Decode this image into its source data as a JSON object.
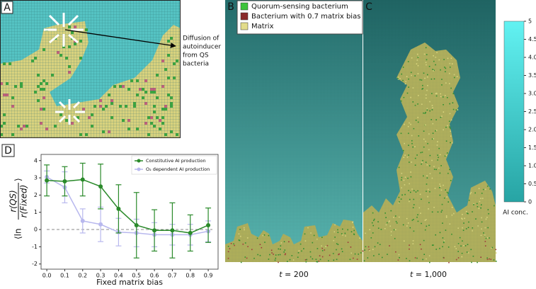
{
  "panels": {
    "a": {
      "label": "A",
      "annotation": [
        "Diffusion of",
        "autoinducer",
        "from QS",
        "bacteria"
      ]
    },
    "b": {
      "label": "B",
      "caption_var": "t",
      "caption_rest": " = 200"
    },
    "c": {
      "label": "C",
      "caption_var": "t",
      "caption_rest": " = 1,000"
    },
    "d": {
      "label": "D"
    }
  },
  "legend": [
    {
      "name": "Quorum-sensing bacterium",
      "color": "#3cc43c"
    },
    {
      "name": "Bacterium with 0.7 matrix bias",
      "color": "#8a2a2a"
    },
    {
      "name": "Matrix",
      "color": "#e2dc8a"
    }
  ],
  "colorbar": {
    "label": "AI conc.",
    "range": [
      0,
      5
    ],
    "colors": [
      "#27a4a4",
      "#62f2f2"
    ],
    "ticks": [
      0,
      0.5,
      {
        "value": 1,
        "label": "1.0"
      },
      1.5,
      {
        "value": 2,
        "label": "2.0"
      },
      2.5,
      {
        "value": 3,
        "label": "3.0"
      },
      3.5,
      {
        "value": 4,
        "label": "4.0"
      },
      4.5,
      5
    ]
  },
  "chart_data": {
    "type": "line",
    "xlabel": "Fixed matrix bias",
    "ylabel": {
      "open": "⟨ln",
      "numerator": "r(QS)",
      "denominator": "r(Fixed)",
      "close": "⟩"
    },
    "x": [
      0,
      0.1,
      0.2,
      0.3,
      0.4,
      0.5,
      0.6,
      0.7,
      0.8,
      0.9
    ],
    "xlim": [
      -0.032,
      0.955
    ],
    "xticks": [
      {
        "value": 0,
        "label": "0.0"
      },
      0.1,
      0.2,
      0.3,
      0.4,
      0.5,
      0.6,
      0.7,
      0.8,
      0.9
    ],
    "ylim": [
      -2.3,
      4.36
    ],
    "yticks": [
      -2,
      -1,
      0,
      1,
      2,
      3,
      4
    ],
    "reference_line": 0,
    "legend_position": "upper right",
    "series": [
      {
        "name": "Constitutive AI production",
        "color": "#2a8a2a",
        "values": [
          2.85,
          2.8,
          2.9,
          2.5,
          1.2,
          0.25,
          -0.05,
          -0.05,
          -0.2,
          0.25
        ],
        "errors": [
          0.9,
          0.85,
          0.95,
          1.3,
          1.4,
          1.9,
          1.2,
          1.6,
          1.05,
          1.0
        ]
      },
      {
        "name": "O₂ dependent AI production",
        "color": "#b8b8ee",
        "values": [
          3.05,
          2.45,
          0.5,
          0.3,
          -0.15,
          -0.2,
          -0.3,
          -0.3,
          -0.3,
          -0.1
        ],
        "errors": [
          0.35,
          0.9,
          0.7,
          1.0,
          0.8,
          0.8,
          0.7,
          0.6,
          0.6,
          0.6
        ]
      }
    ]
  }
}
